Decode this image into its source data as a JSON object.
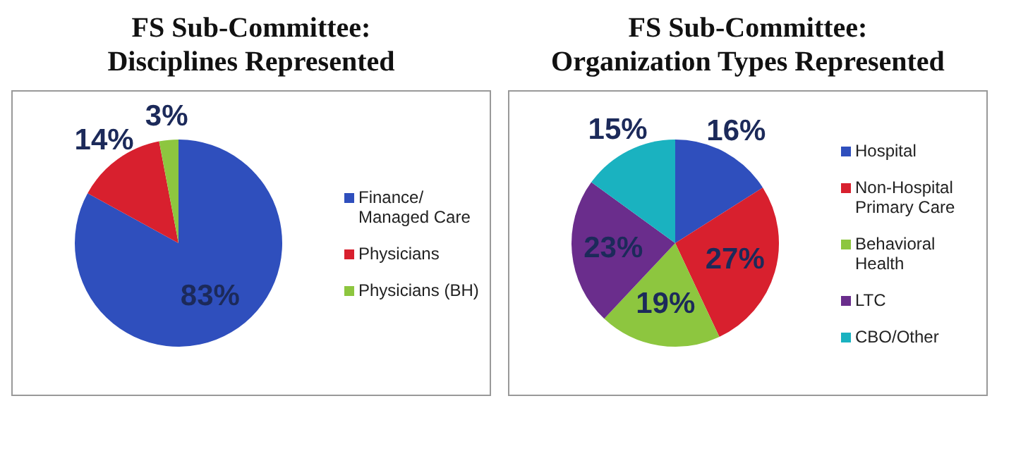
{
  "chart_data": [
    {
      "type": "pie",
      "title": "FS Sub-Committee:\nDisciplines Represented",
      "categories": [
        "Finance/ Managed Care",
        "Physicians",
        "Physicians (BH)"
      ],
      "values": [
        83,
        14,
        3
      ],
      "value_labels": [
        "83%",
        "14%",
        "3%"
      ],
      "colors": [
        "#2f4fbd",
        "#d8202e",
        "#8dc63f"
      ],
      "legend": "right"
    },
    {
      "type": "pie",
      "title": "FS Sub-Committee:\nOrganization Types Represented",
      "categories": [
        "Hospital",
        "Non-Hospital Primary Care",
        "Behavioral Health",
        "LTC",
        "CBO/Other"
      ],
      "values": [
        16,
        27,
        19,
        23,
        15
      ],
      "value_labels": [
        "16%",
        "27%",
        "19%",
        "23%",
        "15%"
      ],
      "colors": [
        "#2f4fbd",
        "#d8202e",
        "#8dc63f",
        "#6a2d8c",
        "#1ab2c0"
      ],
      "legend": "right"
    }
  ]
}
